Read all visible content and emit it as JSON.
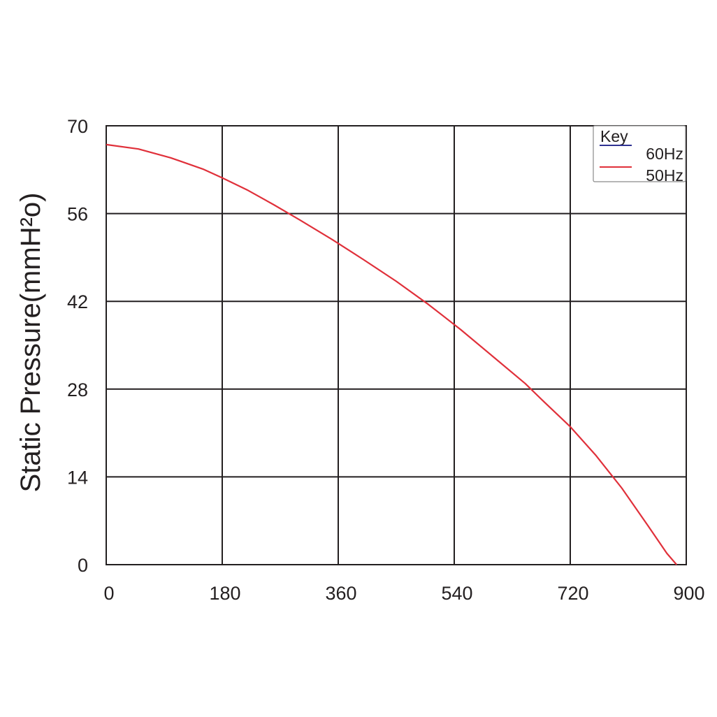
{
  "chart_data": {
    "type": "line",
    "xlabel": "",
    "ylabel": "Static Pressure(mmH²o)",
    "xlim": [
      0,
      900
    ],
    "ylim": [
      0,
      70
    ],
    "x_ticks": [
      "0",
      "180",
      "360",
      "540",
      "720",
      "900"
    ],
    "y_ticks": [
      "0",
      "14",
      "28",
      "42",
      "56",
      "70"
    ],
    "grid": true,
    "legend": {
      "title": "Key",
      "position": "top-right",
      "entries": [
        {
          "label": "60Hz",
          "color": "#2e3192"
        },
        {
          "label": "50Hz",
          "color": "#e0303a"
        }
      ]
    },
    "series": [
      {
        "name": "50Hz",
        "color": "#e0303a",
        "x": [
          0,
          50,
          100,
          150,
          180,
          220,
          260,
          300,
          350,
          400,
          450,
          500,
          550,
          600,
          650,
          680,
          720,
          760,
          800,
          840,
          870,
          885
        ],
        "y": [
          67,
          66.3,
          64.9,
          63.1,
          61.7,
          59.7,
          57.4,
          55.0,
          51.9,
          48.6,
          45.2,
          41.5,
          37.5,
          33.2,
          28.9,
          25.9,
          22.0,
          17.4,
          12.2,
          6.3,
          1.8,
          0
        ]
      }
    ]
  }
}
